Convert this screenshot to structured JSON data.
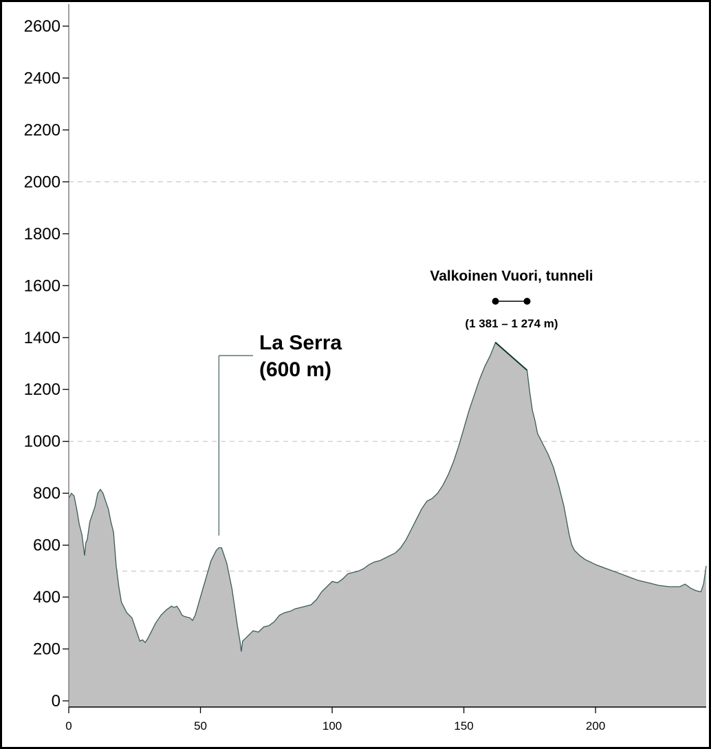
{
  "chart_data": {
    "type": "area",
    "title": "",
    "xlabel": "",
    "ylabel": "",
    "xlim": [
      0,
      242
    ],
    "ylim": [
      0,
      2600
    ],
    "x_ticks": [
      "0",
      "50",
      "100",
      "150",
      "200"
    ],
    "y_ticks": [
      "0",
      "200",
      "400",
      "600",
      "800",
      "1000",
      "1200",
      "1400",
      "1600",
      "1800",
      "2000",
      "2200",
      "2400",
      "2600"
    ],
    "grid_lines_y": [
      500,
      1000,
      2000
    ],
    "colors": {
      "fill": "#c0c0c0",
      "line": "#3d5a5a",
      "tunnel_line": "#0a3a2a"
    },
    "x": [
      0,
      1,
      2,
      3,
      4,
      5,
      6,
      6.5,
      7,
      8,
      9,
      10,
      11,
      12,
      13,
      14,
      15,
      16,
      17,
      18,
      19,
      20,
      22,
      24,
      26,
      27,
      28,
      29,
      30,
      31,
      33,
      35,
      37,
      39,
      40,
      41,
      42,
      43,
      44,
      46,
      47,
      48,
      50,
      52,
      54,
      56,
      57,
      58,
      60,
      62,
      64,
      65,
      65.5,
      66,
      68,
      70,
      72,
      74,
      76,
      78,
      80,
      82,
      84,
      86,
      88,
      90,
      92,
      94,
      96,
      98,
      100,
      102,
      104,
      106,
      108,
      110,
      112,
      114,
      116,
      118,
      120,
      122,
      124,
      126,
      128,
      130,
      132,
      134,
      136,
      138,
      140,
      142,
      144,
      146,
      148,
      150,
      152,
      154,
      156,
      158,
      160,
      162,
      174,
      175,
      176,
      177,
      178,
      179,
      180,
      182,
      184,
      186,
      188,
      190,
      191,
      192,
      194,
      196,
      198,
      200,
      204,
      208,
      212,
      216,
      220,
      224,
      228,
      232,
      234,
      236,
      238,
      240,
      241,
      242
    ],
    "y": [
      780,
      800,
      790,
      740,
      680,
      640,
      560,
      610,
      620,
      690,
      720,
      750,
      800,
      815,
      800,
      770,
      740,
      690,
      650,
      520,
      440,
      380,
      340,
      320,
      260,
      230,
      235,
      225,
      240,
      260,
      300,
      330,
      350,
      365,
      360,
      365,
      350,
      330,
      325,
      320,
      310,
      330,
      400,
      470,
      540,
      580,
      590,
      590,
      530,
      430,
      290,
      230,
      190,
      230,
      250,
      270,
      265,
      285,
      290,
      305,
      330,
      340,
      345,
      355,
      360,
      365,
      370,
      390,
      420,
      440,
      460,
      455,
      470,
      490,
      495,
      500,
      510,
      525,
      535,
      540,
      550,
      560,
      570,
      590,
      620,
      660,
      700,
      740,
      770,
      780,
      800,
      830,
      870,
      920,
      980,
      1050,
      1120,
      1180,
      1240,
      1290,
      1330,
      1381,
      1274,
      1190,
      1120,
      1080,
      1030,
      1010,
      990,
      950,
      900,
      830,
      750,
      640,
      600,
      580,
      560,
      545,
      535,
      525,
      510,
      495,
      480,
      465,
      455,
      445,
      440,
      440,
      450,
      435,
      425,
      420,
      450,
      520
    ],
    "annotations": [
      {
        "label_line1": "La Serra",
        "label_line2": "(600 m)",
        "x": 57,
        "y": 600
      }
    ],
    "tunnel": {
      "name": "Valkoinen Vuori, tunneli",
      "range_label": "(1 381 – 1 274 m)",
      "x_start": 162,
      "x_end": 174,
      "elev_start": 1381,
      "elev_end": 1274
    }
  }
}
